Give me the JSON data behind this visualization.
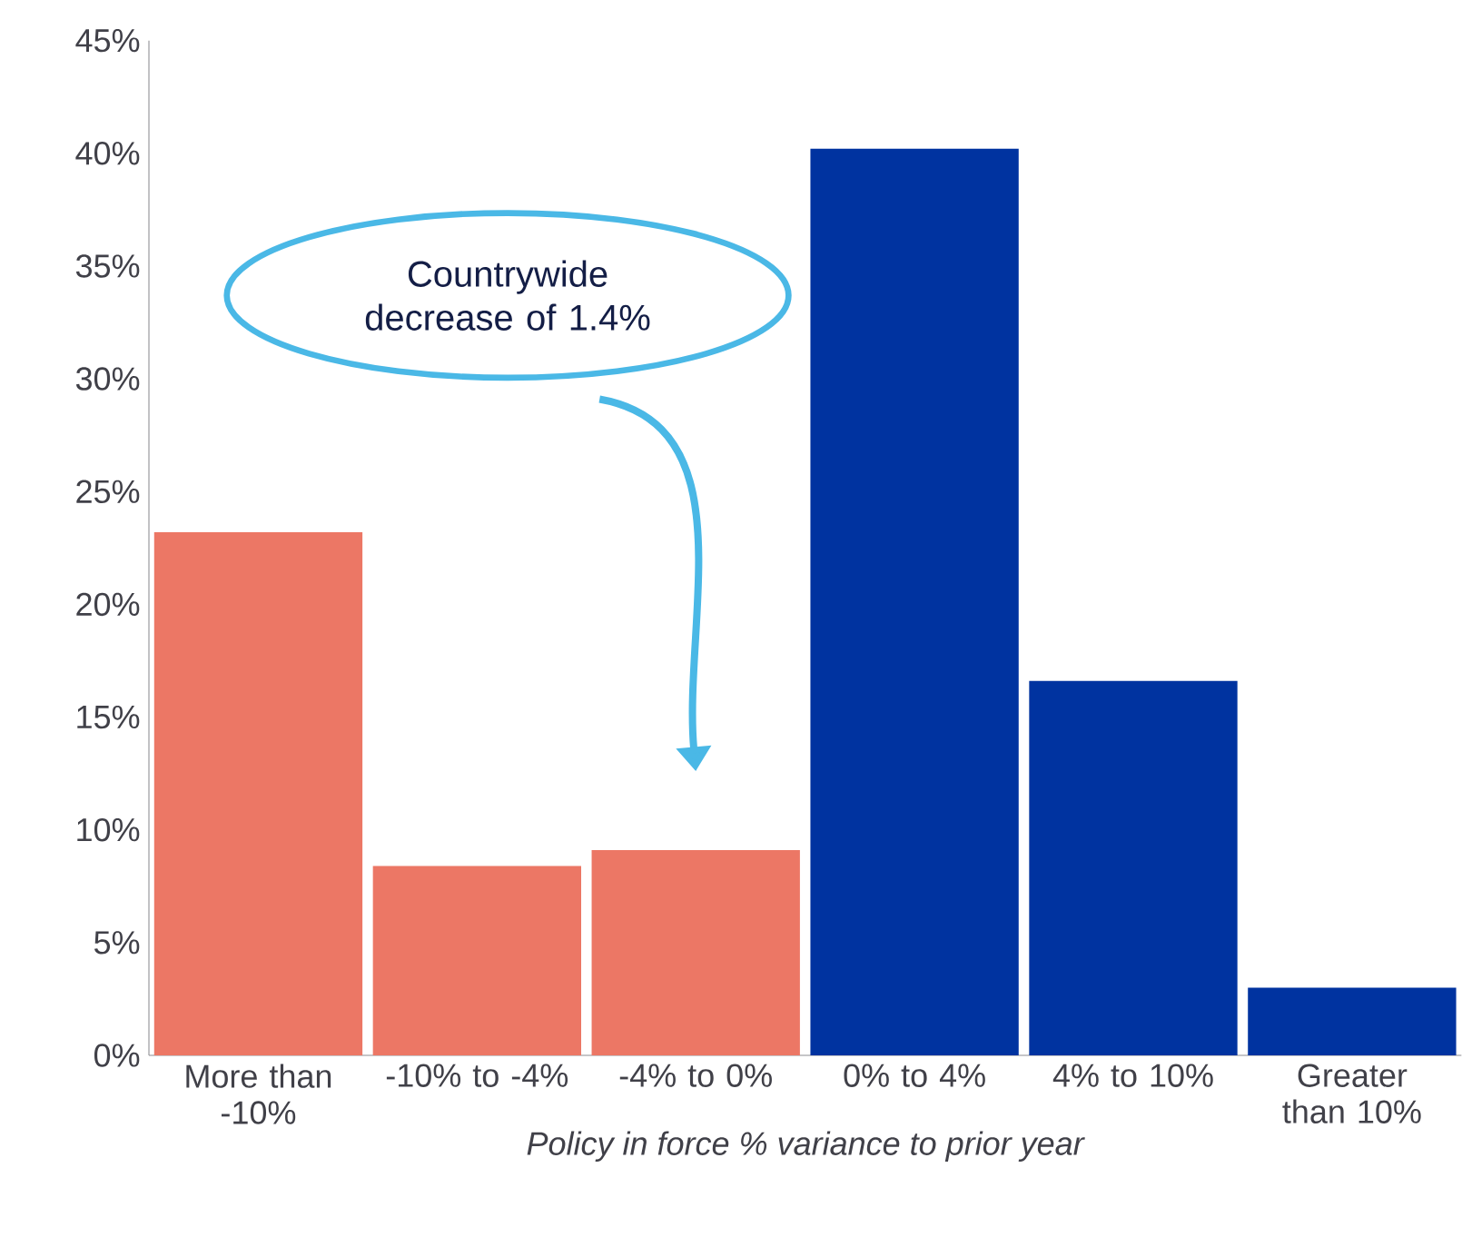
{
  "chart_data": {
    "type": "bar",
    "xlabel": "Policy in force % variance to prior year",
    "categories": [
      "More than -10%",
      "-10% to -4%",
      "-4% to 0%",
      "0% to 4%",
      "4% to 10%",
      "Greater than 10%"
    ],
    "values": [
      23.2,
      8.4,
      9.1,
      40.2,
      16.6,
      3.0
    ],
    "colors": [
      "#ec7765",
      "#ec7765",
      "#ec7765",
      "#0033a0",
      "#0033a0",
      "#0033a0"
    ],
    "ylim": [
      0,
      45
    ],
    "yticks": [
      {
        "value": 0,
        "label": "0%"
      },
      {
        "value": 5,
        "label": "5%"
      },
      {
        "value": 10,
        "label": "10%"
      },
      {
        "value": 15,
        "label": "15%"
      },
      {
        "value": 20,
        "label": "20%"
      },
      {
        "value": 25,
        "label": "25%"
      },
      {
        "value": 30,
        "label": "30%"
      },
      {
        "value": 35,
        "label": "35%"
      },
      {
        "value": 40,
        "label": "40%"
      },
      {
        "value": 45,
        "label": "45%"
      }
    ],
    "annotations": [
      "Countrywide decrease of 1.4%"
    ],
    "grid": false
  }
}
